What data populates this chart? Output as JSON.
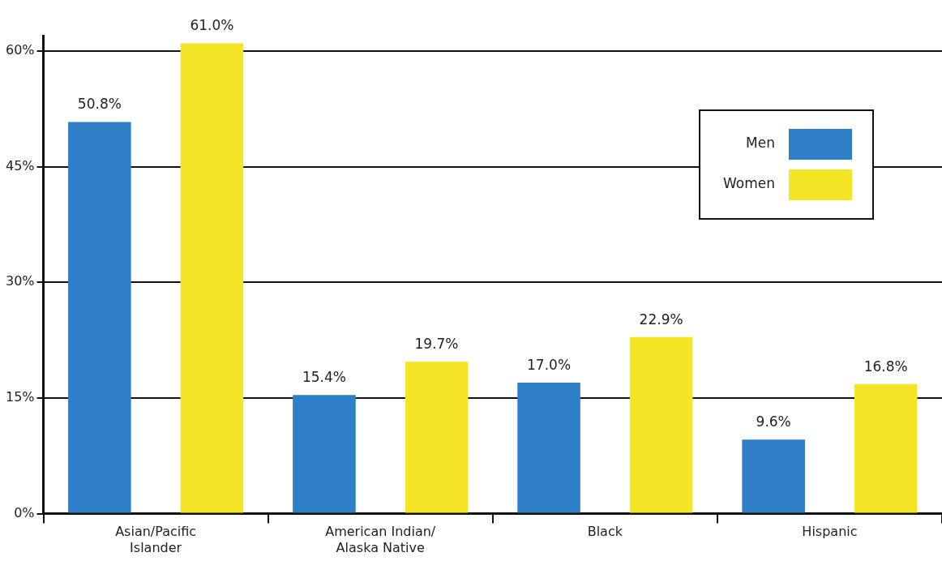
{
  "chart_data": {
    "type": "bar",
    "categories": [
      "Asian/Pacific\nIslander",
      "American Indian/\nAlaska Native",
      "Black",
      "Hispanic"
    ],
    "series": [
      {
        "name": "Men",
        "color": "#2f7fc8",
        "values": [
          50.8,
          15.4,
          17.0,
          9.6
        ],
        "value_labels": [
          "50.8%",
          "15.4%",
          "17.0%",
          "9.6%"
        ]
      },
      {
        "name": "Women",
        "color": "#f4e526",
        "values": [
          61.0,
          19.7,
          22.9,
          16.8
        ],
        "value_labels": [
          "61.0%",
          "19.7%",
          "22.9%",
          "16.8%"
        ]
      }
    ],
    "ylim": [
      0,
      62
    ],
    "yticks": [
      {
        "value": 0,
        "label": "0%"
      },
      {
        "value": 15,
        "label": "15%"
      },
      {
        "value": 30,
        "label": "30%"
      },
      {
        "value": 45,
        "label": "45%"
      },
      {
        "value": 60,
        "label": "60%"
      }
    ],
    "grid": "y",
    "legend": "top right"
  }
}
